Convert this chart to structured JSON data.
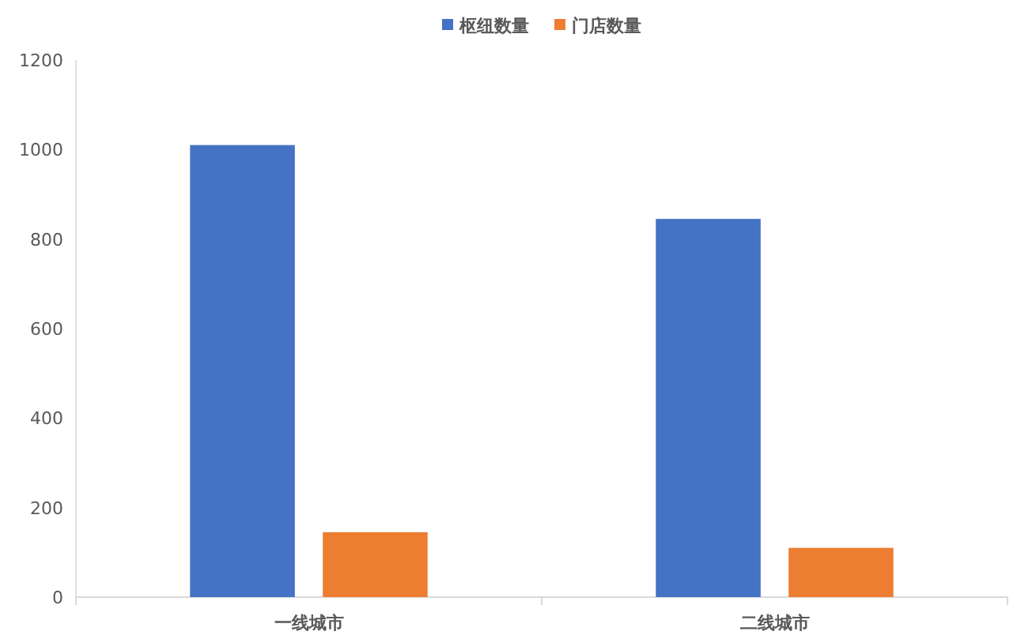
{
  "chart_data": {
    "type": "bar",
    "categories": [
      "一线城市",
      "二线城市"
    ],
    "series": [
      {
        "name": "枢纽数量",
        "color": "#4472c4",
        "values": [
          1010,
          845
        ]
      },
      {
        "name": "门店数量",
        "color": "#ed7d31",
        "values": [
          145,
          110
        ]
      }
    ],
    "ylim": [
      0,
      1200
    ],
    "yticks": [
      0,
      200,
      400,
      600,
      800,
      1000,
      1200
    ],
    "grid": false,
    "legend": "top"
  }
}
